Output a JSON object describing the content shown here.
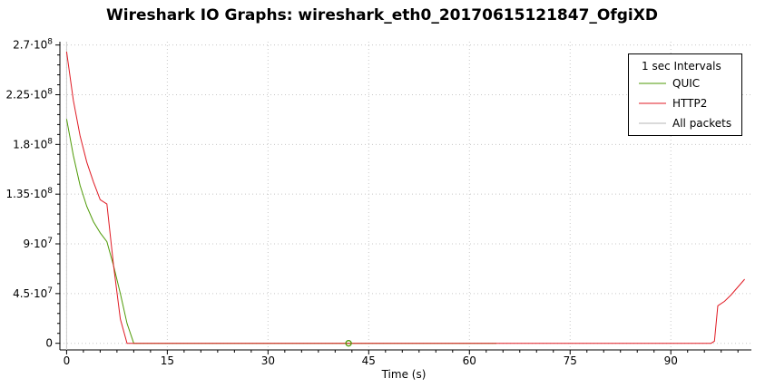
{
  "chart_data": {
    "type": "line",
    "title": "Wireshark IO Graphs: wireshark_eth0_20170615121847_OfgiXD",
    "xlabel": "Time (s)",
    "ylabel": "",
    "xlim": [
      -1,
      102
    ],
    "ylim": [
      -6000000,
      273000000
    ],
    "x_ticks": [
      0,
      15,
      30,
      45,
      60,
      75,
      90
    ],
    "x_tick_labels": [
      "0",
      "15",
      "30",
      "45",
      "60",
      "75",
      "90"
    ],
    "y_ticks": [
      0,
      45000000,
      90000000,
      135000000,
      180000000,
      225000000,
      270000000
    ],
    "y_tick_labels": [
      {
        "base": "0",
        "exp": ""
      },
      {
        "base": "4.5·10",
        "exp": "7"
      },
      {
        "base": "9·10",
        "exp": "7"
      },
      {
        "base": "1.35·10",
        "exp": "8"
      },
      {
        "base": "1.8·10",
        "exp": "8"
      },
      {
        "base": "2.25·10",
        "exp": "8"
      },
      {
        "base": "2.7·10",
        "exp": "8"
      }
    ],
    "grid": true,
    "legend_title": "1 sec Intervals",
    "legend_position": "top-right",
    "marker": {
      "x": 42,
      "y": 0,
      "series": "QUIC"
    },
    "series": [
      {
        "name": "QUIC",
        "color": "#4e9a06",
        "points": [
          [
            0,
            203000000
          ],
          [
            1,
            170000000
          ],
          [
            2,
            143000000
          ],
          [
            3,
            124000000
          ],
          [
            4,
            110000000
          ],
          [
            5,
            100000000
          ],
          [
            6,
            92000000
          ],
          [
            7,
            70000000
          ],
          [
            8,
            45000000
          ],
          [
            9,
            18000000
          ],
          [
            10,
            0
          ],
          [
            11,
            0
          ],
          [
            20,
            0
          ],
          [
            30,
            0
          ],
          [
            40,
            0
          ],
          [
            50,
            0
          ],
          [
            60,
            0
          ],
          [
            64,
            0
          ]
        ]
      },
      {
        "name": "HTTP2",
        "color": "#e01b24",
        "points": [
          [
            0,
            264000000
          ],
          [
            1,
            220000000
          ],
          [
            2,
            188000000
          ],
          [
            3,
            164000000
          ],
          [
            4,
            146000000
          ],
          [
            5,
            130000000
          ],
          [
            6,
            126000000
          ],
          [
            7,
            70000000
          ],
          [
            8,
            22000000
          ],
          [
            9,
            0
          ],
          [
            10,
            0
          ],
          [
            20,
            0
          ],
          [
            40,
            0
          ],
          [
            60,
            0
          ],
          [
            80,
            0
          ],
          [
            96,
            0
          ],
          [
            96.5,
            2000000
          ],
          [
            97,
            34000000
          ],
          [
            98,
            38000000
          ],
          [
            99,
            44000000
          ],
          [
            100,
            51000000
          ],
          [
            101,
            58000000
          ]
        ]
      },
      {
        "name": "All packets",
        "color": "#b4b4b4",
        "points": []
      }
    ]
  }
}
